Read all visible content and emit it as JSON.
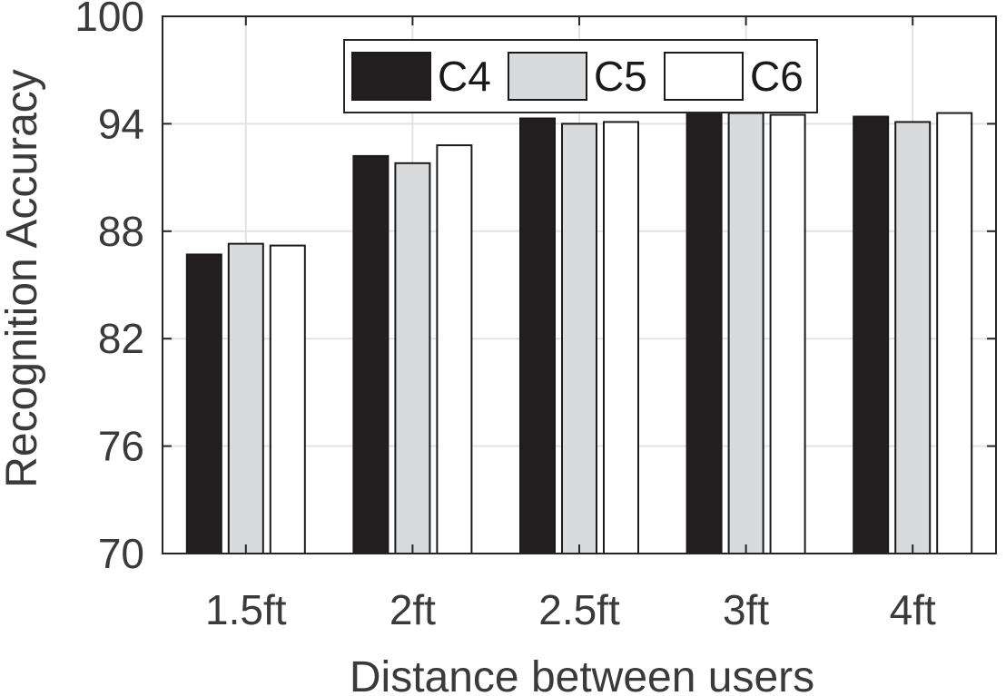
{
  "chart_data": {
    "type": "bar",
    "title": "",
    "xlabel": "Distance between users",
    "ylabel": "Recognition Accuracy",
    "ylim": [
      70,
      100
    ],
    "yticks": [
      70,
      76,
      82,
      88,
      94,
      100
    ],
    "categories": [
      "1.5ft",
      "2ft",
      "2.5ft",
      "3ft",
      "4ft"
    ],
    "series": [
      {
        "name": "C4",
        "values": [
          86.7,
          92.2,
          94.3,
          94.7,
          94.4
        ]
      },
      {
        "name": "C5",
        "values": [
          87.3,
          91.8,
          94.0,
          94.6,
          94.1
        ]
      },
      {
        "name": "C6",
        "values": [
          87.2,
          92.8,
          94.1,
          94.5,
          94.6
        ]
      }
    ],
    "grid": true,
    "legend_position": "top",
    "colors": {
      "C4": "#231f20",
      "C5": "#d9dadc",
      "C6": "#ffffff"
    }
  }
}
